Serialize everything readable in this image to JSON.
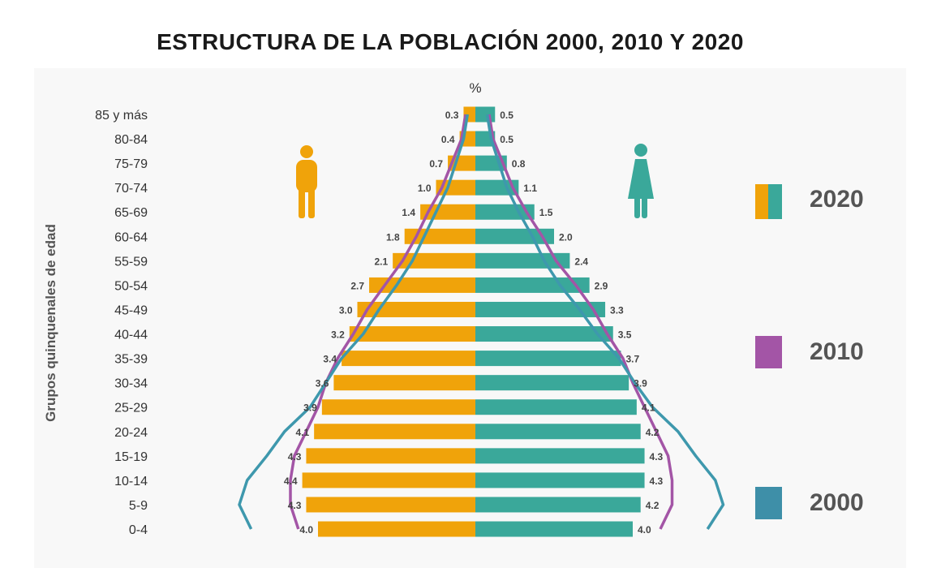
{
  "title": "ESTRUCTURA DE LA POBLACIÓN 2000, 2010 Y 2020",
  "colors": {
    "male_2020": "#f0a30a",
    "female_2020": "#3aa89a",
    "line_2010": "#a355a6",
    "line_2000": "#3e98ad",
    "legend_2000": "#3e8fa8",
    "icon_male": "#f0a30a",
    "icon_female": "#3aa89a"
  },
  "icons": {
    "male": "male-person-icon",
    "female": "female-person-icon"
  },
  "legend": [
    {
      "label": "2020",
      "swatch": "split-orange-teal"
    },
    {
      "label": "2010",
      "swatch": "purple"
    },
    {
      "label": "2000",
      "swatch": "blue"
    }
  ],
  "chart_data": {
    "type": "bar",
    "subtype": "population-pyramid",
    "title": "ESTRUCTURA DE LA POBLACIÓN 2000, 2010 Y 2020",
    "xlabel": "%",
    "ylabel": "Grupos quinquenales de edad",
    "categories": [
      "85 y más",
      "80-84",
      "75-79",
      "70-74",
      "65-69",
      "60-64",
      "55-59",
      "50-54",
      "45-49",
      "40-44",
      "35-39",
      "30-34",
      "25-29",
      "20-24",
      "15-19",
      "10-14",
      "5-9",
      "0-4"
    ],
    "series": [
      {
        "name": "2020",
        "side": "male",
        "values": [
          0.3,
          0.4,
          0.7,
          1.0,
          1.4,
          1.8,
          2.1,
          2.7,
          3.0,
          3.2,
          3.4,
          3.6,
          3.9,
          4.1,
          4.3,
          4.4,
          4.3,
          4.0
        ],
        "labels": [
          "0.3",
          "0.4",
          "0.7",
          "1.0",
          "1.4",
          "1.8",
          "2.1",
          "2.7",
          "3.0",
          "3.2",
          "3.4",
          "3.6",
          "3.9",
          "4.1",
          "4.3",
          "4.4",
          "4.3",
          "4.0"
        ]
      },
      {
        "name": "2020",
        "side": "female",
        "values": [
          0.5,
          0.5,
          0.8,
          1.1,
          1.5,
          2.0,
          2.4,
          2.9,
          3.3,
          3.5,
          3.7,
          3.9,
          4.1,
          4.2,
          4.3,
          4.3,
          4.2,
          4.0
        ],
        "labels": [
          "0.5",
          "0.5",
          "0.8",
          "1.1",
          "1.5",
          "2.0",
          "2.4",
          "2.9",
          "3.3",
          "3.5",
          "3.7",
          "3.9",
          "4.1",
          "4.2",
          "4.3",
          "4.3",
          "4.2",
          "4.0"
        ]
      },
      {
        "name": "2010",
        "side": "male",
        "values": [
          0.25,
          0.35,
          0.6,
          0.85,
          1.2,
          1.5,
          1.85,
          2.3,
          2.75,
          3.1,
          3.5,
          3.8,
          4.0,
          4.3,
          4.6,
          4.7,
          4.7,
          4.5
        ]
      },
      {
        "name": "2010",
        "side": "female",
        "values": [
          0.35,
          0.45,
          0.7,
          0.95,
          1.3,
          1.7,
          2.05,
          2.55,
          3.0,
          3.35,
          3.75,
          4.0,
          4.3,
          4.6,
          4.9,
          5.0,
          5.0,
          4.7
        ]
      },
      {
        "name": "2000",
        "side": "male",
        "values": [
          0.2,
          0.3,
          0.5,
          0.7,
          1.0,
          1.3,
          1.6,
          2.0,
          2.45,
          2.85,
          3.4,
          3.8,
          4.2,
          4.85,
          5.3,
          5.8,
          6.0,
          5.7
        ]
      },
      {
        "name": "2000",
        "side": "female",
        "values": [
          0.3,
          0.4,
          0.6,
          0.8,
          1.1,
          1.45,
          1.75,
          2.15,
          2.65,
          3.1,
          3.65,
          4.05,
          4.5,
          5.15,
          5.6,
          6.1,
          6.3,
          5.9
        ]
      }
    ],
    "grid": false,
    "legend_position": "right"
  }
}
